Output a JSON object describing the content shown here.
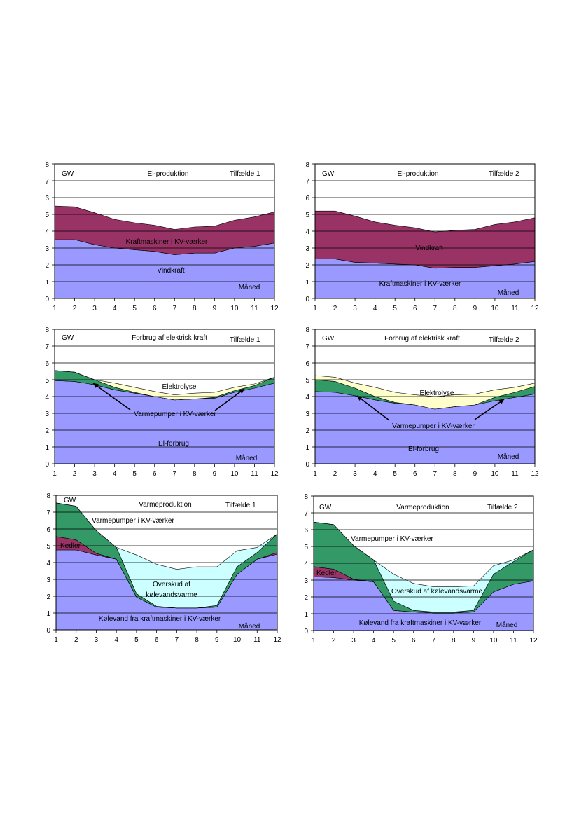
{
  "chart_data": [
    {
      "type": "area",
      "title": "El-produktion",
      "case_label": "Tilfælde  1",
      "unit_label": "GW",
      "xlabel": "Måned",
      "ylim": [
        0,
        8
      ],
      "x": [
        1,
        2,
        3,
        4,
        5,
        6,
        7,
        8,
        9,
        10,
        11,
        12
      ],
      "x_ticks": [
        "1",
        "2",
        "3",
        "4",
        "5",
        "6",
        "7",
        "8",
        "9",
        "10",
        "11",
        "12"
      ],
      "y_ticks": [
        "0",
        "1",
        "2",
        "3",
        "4",
        "5",
        "6",
        "7",
        "8"
      ],
      "grid": true,
      "series": [
        {
          "name": "Kraftmaskiner i KV-værker",
          "color": "#9999ff",
          "values": [
            3.5,
            3.5,
            3.2,
            3.0,
            2.9,
            2.8,
            2.6,
            2.7,
            2.7,
            3.0,
            3.1,
            3.3
          ]
        },
        {
          "name": "Vindkraft",
          "color": "#993366",
          "values": [
            2.0,
            1.95,
            1.9,
            1.7,
            1.6,
            1.55,
            1.5,
            1.55,
            1.6,
            1.65,
            1.75,
            1.85
          ]
        }
      ]
    },
    {
      "type": "area",
      "title": "El-produktion",
      "case_label": "Tilfælde  2",
      "unit_label": "GW",
      "xlabel": "Måned",
      "ylim": [
        0,
        8
      ],
      "x": [
        1,
        2,
        3,
        4,
        5,
        6,
        7,
        8,
        9,
        10,
        11,
        12
      ],
      "x_ticks": [
        "1",
        "2",
        "3",
        "4",
        "5",
        "6",
        "7",
        "8",
        "9",
        "10",
        "11",
        "12"
      ],
      "y_ticks": [
        "0",
        "1",
        "2",
        "3",
        "4",
        "5",
        "6",
        "7",
        "8"
      ],
      "grid": true,
      "series": [
        {
          "name": "Kraftmaskiner i KV-værker",
          "color": "#9999ff",
          "values": [
            2.35,
            2.35,
            2.15,
            2.1,
            2.05,
            2.0,
            1.8,
            1.85,
            1.85,
            1.95,
            2.05,
            2.2
          ]
        },
        {
          "name": "Vindkraft",
          "color": "#993366",
          "values": [
            2.85,
            2.85,
            2.75,
            2.45,
            2.3,
            2.2,
            2.15,
            2.2,
            2.25,
            2.45,
            2.5,
            2.6
          ]
        }
      ]
    },
    {
      "type": "area",
      "title": "Forbrug af elektrisk kraft",
      "case_label": "Tilfælde  1",
      "unit_label": "GW",
      "xlabel": "Måned",
      "ylim": [
        0,
        8
      ],
      "x": [
        1,
        2,
        3,
        4,
        5,
        6,
        7,
        8,
        9,
        10,
        11,
        12
      ],
      "x_ticks": [
        "1",
        "2",
        "3",
        "4",
        "5",
        "6",
        "7",
        "8",
        "9",
        "10",
        "11",
        "12"
      ],
      "y_ticks": [
        "0",
        "1",
        "2",
        "3",
        "4",
        "5",
        "6",
        "7",
        "8"
      ],
      "grid": true,
      "annotation": "Varmepumper i KV-værker",
      "series": [
        {
          "name": "El-forbrug",
          "color": "#9999ff",
          "values": [
            4.95,
            4.9,
            4.7,
            4.4,
            4.2,
            4.0,
            3.8,
            3.85,
            3.9,
            4.25,
            4.5,
            4.8
          ]
        },
        {
          "name": "Varmepumper i KV-værker",
          "color": "#339966",
          "values": [
            0.6,
            0.55,
            0.3,
            0.15,
            0.05,
            0.0,
            0.0,
            0.0,
            0.05,
            0.1,
            0.15,
            0.35
          ]
        },
        {
          "name": "Elektrolyse",
          "color": "#ffffcc",
          "values": [
            0.0,
            0.0,
            0.0,
            0.25,
            0.3,
            0.3,
            0.3,
            0.35,
            0.3,
            0.2,
            0.1,
            0.0
          ]
        }
      ]
    },
    {
      "type": "area",
      "title": "Forbrug af elektrisk kraft",
      "case_label": "Tilfælde  2",
      "unit_label": "GW",
      "xlabel": "Måned",
      "ylim": [
        0,
        8
      ],
      "x": [
        1,
        2,
        3,
        4,
        5,
        6,
        7,
        8,
        9,
        10,
        11,
        12
      ],
      "x_ticks": [
        "1",
        "2",
        "3",
        "4",
        "5",
        "6",
        "7",
        "8",
        "9",
        "10",
        "11",
        "12"
      ],
      "y_ticks": [
        "0",
        "1",
        "2",
        "3",
        "4",
        "5",
        "6",
        "7",
        "8"
      ],
      "grid": true,
      "annotation": "Varmepumper i KV-værker",
      "series": [
        {
          "name": "El-forbrug",
          "color": "#9999ff",
          "values": [
            4.3,
            4.25,
            4.05,
            3.8,
            3.6,
            3.5,
            3.25,
            3.4,
            3.5,
            3.75,
            3.95,
            4.15
          ]
        },
        {
          "name": "Varmepumper i KV-værker",
          "color": "#339966",
          "values": [
            0.7,
            0.65,
            0.45,
            0.2,
            0.05,
            0.0,
            0.0,
            0.0,
            0.0,
            0.2,
            0.3,
            0.45
          ]
        },
        {
          "name": "Elektrolyse",
          "color": "#ffffcc",
          "values": [
            0.25,
            0.25,
            0.3,
            0.55,
            0.6,
            0.6,
            0.75,
            0.7,
            0.65,
            0.45,
            0.3,
            0.2
          ]
        }
      ]
    },
    {
      "type": "area",
      "title": "Varmeproduktion",
      "case_label": "Tilfælde  1",
      "unit_label": "GW",
      "xlabel": "Måned",
      "ylim": [
        0,
        8
      ],
      "x": [
        1,
        2,
        3,
        4,
        5,
        6,
        7,
        8,
        9,
        10,
        11,
        12
      ],
      "x_ticks": [
        "1",
        "2",
        "3",
        "4",
        "5",
        "6",
        "7",
        "8",
        "9",
        "10",
        "11",
        "12"
      ],
      "y_ticks": [
        "0",
        "1",
        "2",
        "3",
        "4",
        "5",
        "6",
        "7",
        "8"
      ],
      "grid": true,
      "series": [
        {
          "name": "Kølevand fra kraftmaskiner i KV-værker",
          "color": "#9999ff",
          "values": [
            4.75,
            4.75,
            4.45,
            4.2,
            1.95,
            1.35,
            1.3,
            1.3,
            1.35,
            3.3,
            4.2,
            4.5
          ]
        },
        {
          "name": "Kedler",
          "color": "#993366",
          "values": [
            0.8,
            0.6,
            0.1,
            0.0,
            0.0,
            0.0,
            0.0,
            0.0,
            0.0,
            0.0,
            0.0,
            0.1
          ]
        },
        {
          "name": "Varmepumper i KV-værker",
          "color": "#339966",
          "values": [
            2.0,
            2.0,
            1.35,
            0.7,
            0.2,
            0.05,
            0.0,
            0.0,
            0.1,
            0.45,
            0.4,
            1.1
          ]
        },
        {
          "name": "Overskud af kølevandsvarme",
          "color": "#ccffff",
          "values": [
            0.0,
            0.0,
            0.0,
            0.0,
            2.3,
            2.5,
            2.3,
            2.45,
            2.3,
            0.95,
            0.3,
            0.0
          ]
        }
      ]
    },
    {
      "type": "area",
      "title": "Varmeproduktion",
      "case_label": "Tilfælde  2",
      "unit_label": "GW",
      "xlabel": "Måned",
      "ylim": [
        0,
        8
      ],
      "x": [
        1,
        2,
        3,
        4,
        5,
        6,
        7,
        8,
        9,
        10,
        11,
        12
      ],
      "x_ticks": [
        "1",
        "2",
        "3",
        "4",
        "5",
        "6",
        "7",
        "8",
        "9",
        "10",
        "11",
        "12"
      ],
      "y_ticks": [
        "0",
        "1",
        "2",
        "3",
        "4",
        "5",
        "6",
        "7",
        "8"
      ],
      "grid": true,
      "series": [
        {
          "name": "Kølevand fra kraftmaskiner i KV-værker",
          "color": "#9999ff",
          "values": [
            3.2,
            3.15,
            3.0,
            2.9,
            1.2,
            1.1,
            1.05,
            1.05,
            1.1,
            2.3,
            2.75,
            2.95
          ]
        },
        {
          "name": "Kedler",
          "color": "#993366",
          "values": [
            0.6,
            0.5,
            0.05,
            0.0,
            0.0,
            0.0,
            0.0,
            0.0,
            0.0,
            0.0,
            0.0,
            0.0
          ]
        },
        {
          "name": "Varmepumper i KV-værker",
          "color": "#339966",
          "values": [
            2.65,
            2.65,
            2.0,
            1.3,
            0.55,
            0.1,
            0.05,
            0.05,
            0.1,
            1.05,
            1.35,
            1.85
          ]
        },
        {
          "name": "Overskud af kølevandsvarme",
          "color": "#ccffff",
          "values": [
            0.0,
            0.0,
            0.0,
            0.0,
            1.6,
            1.6,
            1.5,
            1.5,
            1.45,
            0.5,
            0.1,
            0.0
          ]
        }
      ]
    }
  ]
}
